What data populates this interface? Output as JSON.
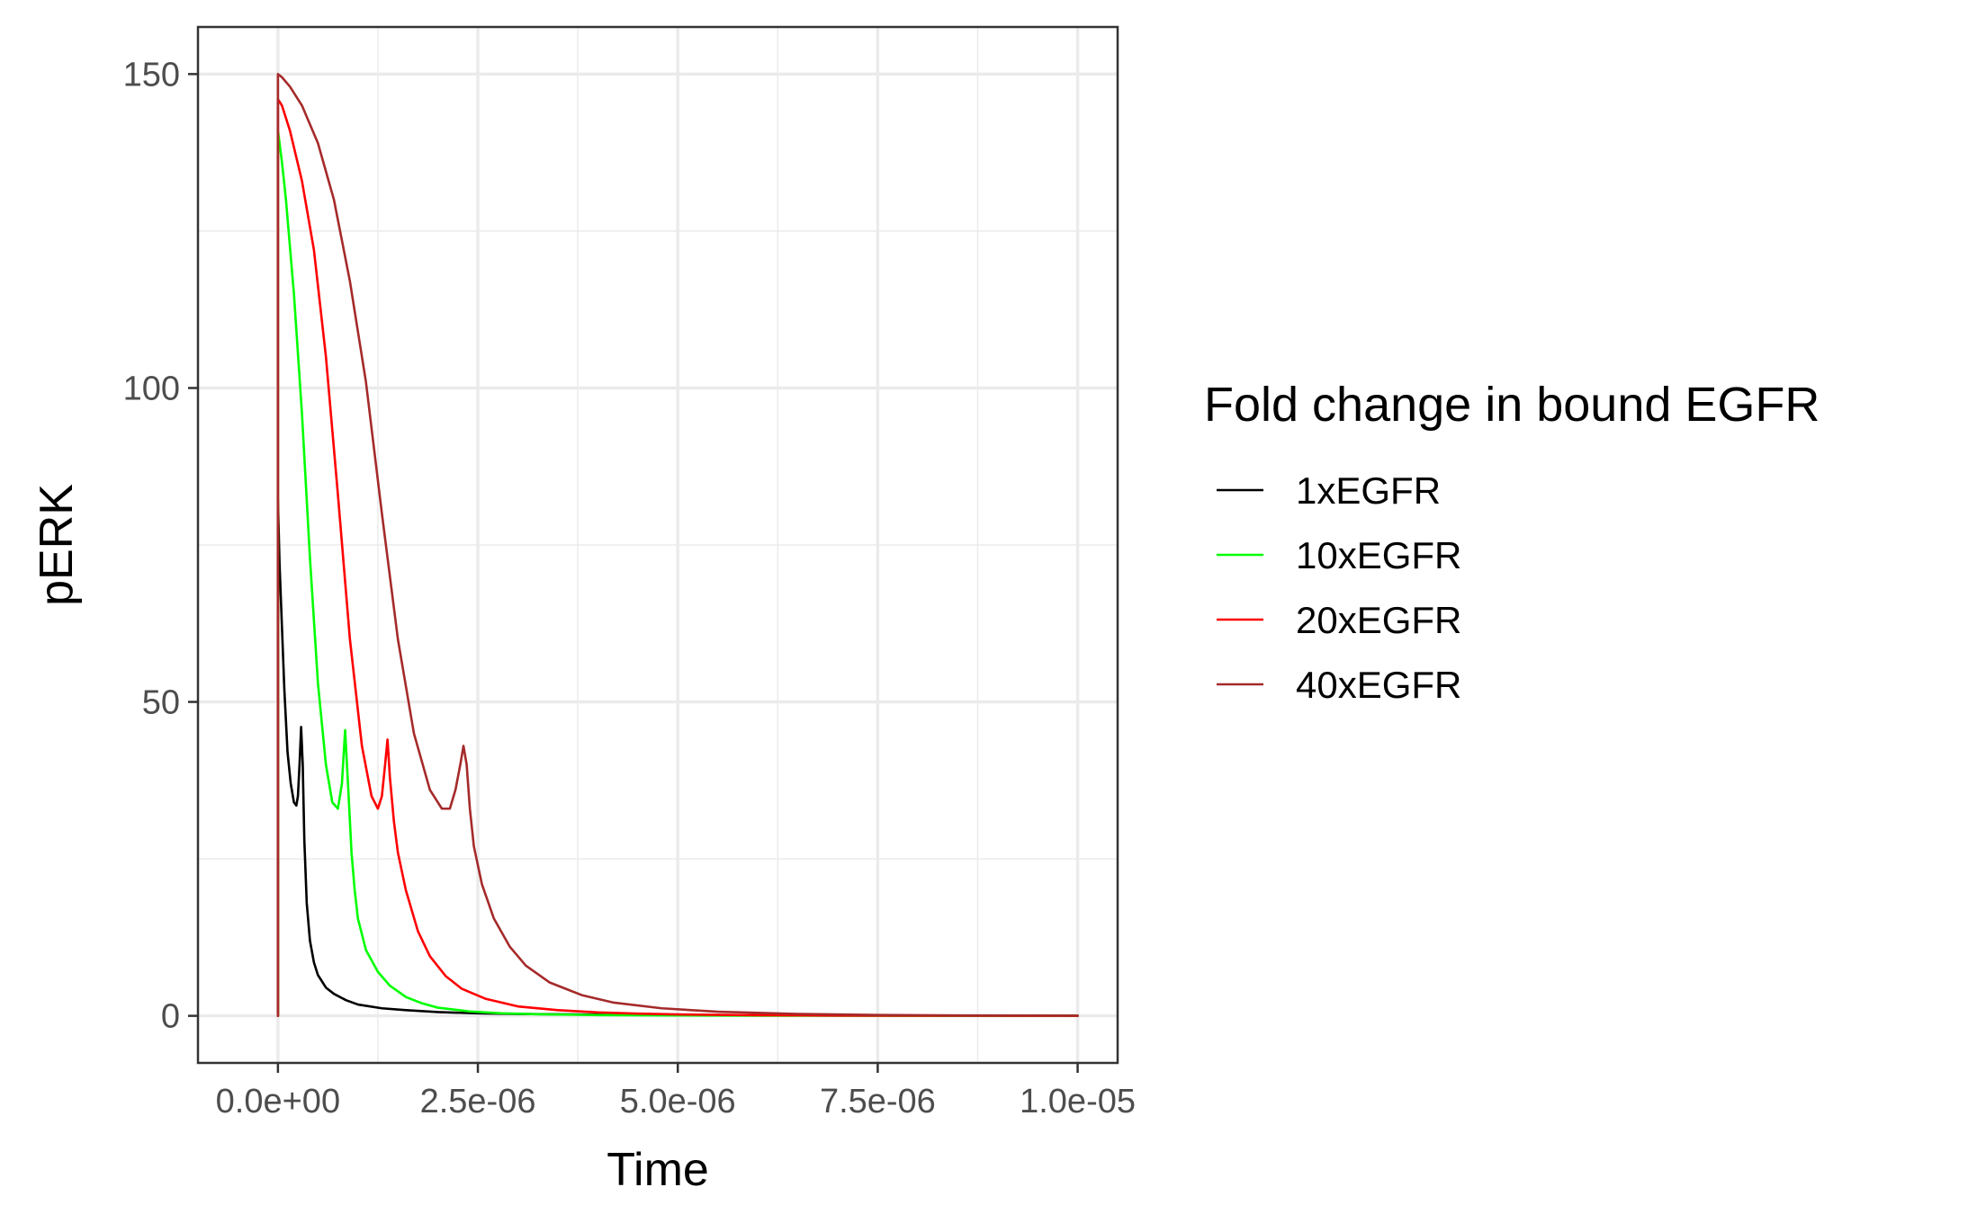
{
  "chart_data": {
    "type": "line",
    "title": "",
    "xlabel": "Time",
    "ylabel": "pERK",
    "xlim": [
      -1e-06,
      1.05e-05
    ],
    "ylim": [
      -7.5,
      157.5
    ],
    "x_ticks": [
      0,
      2.5e-06,
      5e-06,
      7.5e-06,
      1e-05
    ],
    "x_tick_labels": [
      "0.0e+00",
      "2.5e-06",
      "5.0e-06",
      "7.5e-06",
      "1.0e-05"
    ],
    "y_ticks": [
      0,
      50,
      100,
      150
    ],
    "y_tick_labels": [
      "0",
      "50",
      "100",
      "150"
    ],
    "grid": true,
    "legend": {
      "title": "Fold change in bound EGFR",
      "position": "right"
    },
    "series": [
      {
        "name": "1xEGFR",
        "color": "#000000",
        "x": [
          0,
          0,
          2e-08,
          5e-08,
          8e-08,
          1.2e-07,
          1.6e-07,
          2e-07,
          2.3e-07,
          2.5e-07,
          2.7e-07,
          2.9e-07,
          3.1e-07,
          3.3e-07,
          3.6e-07,
          4e-07,
          4.5e-07,
          5e-07,
          6e-07,
          7e-07,
          8.5e-07,
          1e-06,
          1.3e-06,
          1.6e-06,
          2e-06,
          2.5e-06,
          3e-06,
          4e-06,
          5e-06,
          6e-06,
          8e-06,
          1e-05
        ],
        "y": [
          0,
          82,
          72,
          62,
          52,
          42,
          37,
          34,
          33.5,
          35,
          40,
          46,
          40,
          28,
          18,
          12,
          8.5,
          6.5,
          4.5,
          3.5,
          2.5,
          1.8,
          1.2,
          0.9,
          0.6,
          0.4,
          0.3,
          0.2,
          0.12,
          0.08,
          0.04,
          0.02
        ]
      },
      {
        "name": "10xEGFR",
        "color": "#00ff00",
        "x": [
          0,
          0,
          5e-08,
          1e-07,
          2e-07,
          3e-07,
          4e-07,
          5e-07,
          6e-07,
          6.8e-07,
          7.5e-07,
          8e-07,
          8.4e-07,
          8.8e-07,
          9.2e-07,
          9.6e-07,
          1e-06,
          1.1e-06,
          1.25e-06,
          1.4e-06,
          1.6e-06,
          1.8e-06,
          2e-06,
          2.4e-06,
          2.8e-06,
          3.3e-06,
          4e-06,
          5e-06,
          6e-06,
          8e-06,
          1e-05
        ],
        "y": [
          0,
          141,
          136,
          130,
          115,
          96,
          73,
          53,
          40,
          34,
          33,
          37,
          45.5,
          36,
          26,
          20,
          15.5,
          10.5,
          7,
          4.8,
          3,
          2,
          1.3,
          0.7,
          0.4,
          0.25,
          0.12,
          0.06,
          0.03,
          0.01,
          0.005
        ]
      },
      {
        "name": "20xEGFR",
        "color": "#ff0000",
        "x": [
          0,
          0,
          5e-08,
          1.5e-07,
          3e-07,
          4.5e-07,
          6e-07,
          7.5e-07,
          9e-07,
          1.05e-06,
          1.17e-06,
          1.25e-06,
          1.3e-06,
          1.34e-06,
          1.37e-06,
          1.4e-06,
          1.45e-06,
          1.5e-06,
          1.6e-06,
          1.75e-06,
          1.9e-06,
          2.1e-06,
          2.3e-06,
          2.6e-06,
          3e-06,
          3.5e-06,
          4e-06,
          4.5e-06,
          5e-06,
          6e-06,
          7e-06,
          8e-06,
          1e-05
        ],
        "y": [
          0,
          146,
          145,
          141,
          133,
          122,
          105,
          83,
          60,
          43,
          35,
          33,
          35,
          40,
          44,
          38,
          31,
          26,
          20,
          13.5,
          9.5,
          6.3,
          4.3,
          2.7,
          1.5,
          0.9,
          0.55,
          0.35,
          0.22,
          0.1,
          0.05,
          0.02,
          0.005
        ]
      },
      {
        "name": "40xEGFR",
        "color": "#a52a2a",
        "x": [
          0,
          0,
          5e-08,
          1.5e-07,
          3e-07,
          5e-07,
          7e-07,
          9e-07,
          1.1e-06,
          1.3e-06,
          1.5e-06,
          1.7e-06,
          1.9e-06,
          2.05e-06,
          2.15e-06,
          2.22e-06,
          2.28e-06,
          2.32e-06,
          2.36e-06,
          2.4e-06,
          2.45e-06,
          2.55e-06,
          2.7e-06,
          2.9e-06,
          3.1e-06,
          3.4e-06,
          3.8e-06,
          4.2e-06,
          4.8e-06,
          5.5e-06,
          6.5e-06,
          7.5e-06,
          8.5e-06,
          1e-05
        ],
        "y": [
          0,
          150,
          149.5,
          148,
          145,
          139,
          130,
          117,
          101,
          80,
          60,
          45,
          36,
          33,
          33,
          36,
          40,
          43,
          40,
          33,
          27,
          21,
          15.5,
          11,
          8,
          5.3,
          3.3,
          2.1,
          1.2,
          0.65,
          0.3,
          0.14,
          0.07,
          0.02
        ]
      }
    ]
  }
}
